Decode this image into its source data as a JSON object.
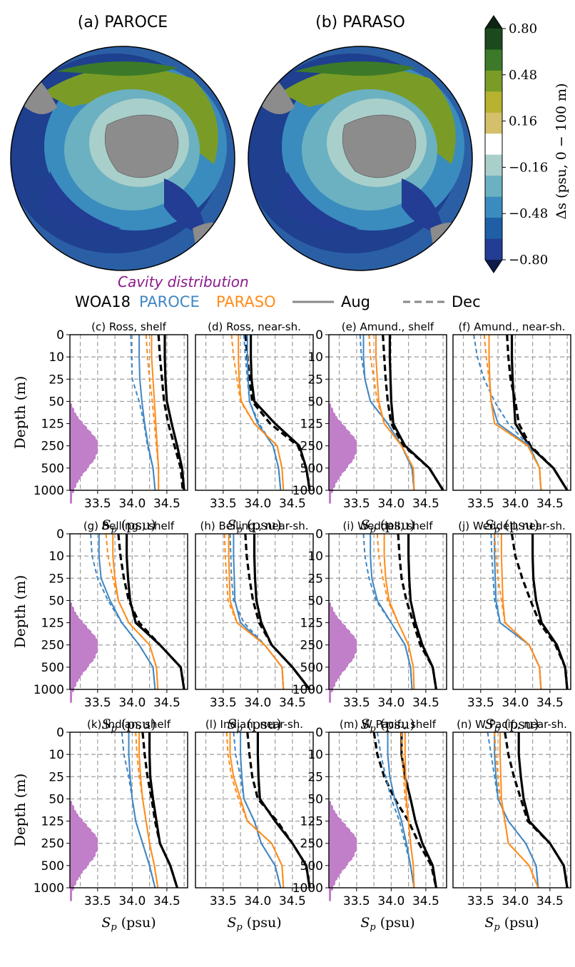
{
  "maps": {
    "panels": [
      {
        "title": "(a) PAROCE"
      },
      {
        "title": "(b) PARASO"
      }
    ],
    "colorbar": {
      "label": "Δs (psu, 0 − 100 m)",
      "ticks": [
        "0.80",
        "0.48",
        "0.16",
        "−0.16",
        "−0.48",
        "−0.80"
      ],
      "levels": [
        "#0e2413",
        "#1c4a1e",
        "#3c7a2a",
        "#7a9c26",
        "#b7b230",
        "#d4bf6a",
        "#ffffff",
        "#a9cfcb",
        "#6bb1c2",
        "#3a8cbe",
        "#1f5fa6",
        "#223d93",
        "#0d1a4b"
      ]
    }
  },
  "legend": {
    "cavity": "Cavity distribution",
    "datasets": [
      {
        "label": "WOA18",
        "color": "#000000"
      },
      {
        "label": "PAROCE",
        "color": "#3f86c2"
      },
      {
        "label": "PARASO",
        "color": "#ff8c1a"
      }
    ],
    "styles": [
      {
        "label": "Aug",
        "dash": "solid"
      },
      {
        "label": "Dec",
        "dash": "dashed"
      }
    ]
  },
  "axes": {
    "ylabel": "Depth (m)",
    "xlabel_sym": "S",
    "xlabel_sub": "p",
    "xlabel_unit": " (psu)",
    "yticks": [
      "0",
      "10",
      "25",
      "50",
      "125",
      "250",
      "500",
      "1000"
    ],
    "xticks": [
      "33.5",
      "34.0",
      "34.5"
    ]
  },
  "chart_data": {
    "type": "line",
    "x_unit": "psu",
    "y_unit": "m",
    "xlim": [
      33.1,
      34.8
    ],
    "depth_levels": [
      0,
      10,
      25,
      50,
      125,
      250,
      500,
      1000
    ],
    "cavity_color": "#c27fc9",
    "panels": [
      {
        "title": "(c) Ross, shelf",
        "cavity": true,
        "woa_aug": [
          34.47,
          34.47,
          34.48,
          34.5,
          34.57,
          34.65,
          34.72,
          34.75
        ],
        "woa_dec": [
          34.38,
          34.4,
          34.43,
          34.46,
          34.52,
          34.61,
          34.7,
          34.73
        ],
        "paroce_aug": [
          34.1,
          34.1,
          34.11,
          34.14,
          34.18,
          34.23,
          34.3,
          34.33
        ],
        "paroce_dec": [
          33.98,
          33.99,
          34.0,
          34.1,
          34.17,
          34.22,
          34.3,
          34.33
        ],
        "paraso_aug": [
          34.28,
          34.28,
          34.3,
          34.32,
          34.34,
          34.36,
          34.38,
          34.38
        ],
        "paraso_dec": [
          34.2,
          34.22,
          34.25,
          34.29,
          34.32,
          34.35,
          34.38,
          34.38
        ]
      },
      {
        "title": "(d) Ross, near-sh.",
        "cavity": false,
        "woa_aug": [
          33.9,
          33.9,
          33.91,
          33.95,
          34.25,
          34.6,
          34.7,
          34.75
        ],
        "woa_dec": [
          33.82,
          33.85,
          33.88,
          33.92,
          34.18,
          34.58,
          34.7,
          34.75
        ],
        "paroce_aug": [
          33.85,
          33.85,
          33.86,
          33.88,
          34.0,
          34.22,
          34.3,
          34.33
        ],
        "paroce_dec": [
          33.8,
          33.82,
          33.85,
          33.88,
          34.02,
          34.22,
          34.3,
          34.33
        ],
        "paraso_aug": [
          33.72,
          33.72,
          33.73,
          33.76,
          33.95,
          34.28,
          34.35,
          34.37
        ],
        "paraso_dec": [
          33.62,
          33.65,
          33.7,
          33.75,
          33.95,
          34.28,
          34.35,
          34.37
        ]
      },
      {
        "title": "(e) Amund., shelf",
        "cavity": true,
        "woa_aug": [
          33.98,
          33.98,
          33.99,
          34.0,
          34.03,
          34.2,
          34.55,
          34.75
        ],
        "woa_dec": [
          33.88,
          33.9,
          33.92,
          33.95,
          34.0,
          34.18,
          34.55,
          34.75
        ],
        "paroce_aug": [
          33.6,
          33.6,
          33.62,
          33.7,
          33.95,
          34.15,
          34.3,
          34.33
        ],
        "paroce_dec": [
          33.55,
          33.57,
          33.62,
          33.7,
          33.95,
          34.15,
          34.3,
          34.33
        ],
        "paraso_aug": [
          33.78,
          33.78,
          33.8,
          33.82,
          33.9,
          34.15,
          34.32,
          34.33
        ],
        "paraso_dec": [
          33.68,
          33.7,
          33.75,
          33.8,
          33.9,
          34.15,
          34.32,
          34.33
        ]
      },
      {
        "title": "(f) Amund., near-sh.",
        "cavity": false,
        "woa_aug": [
          33.95,
          33.95,
          33.96,
          33.98,
          34.0,
          34.2,
          34.55,
          34.75
        ],
        "woa_dec": [
          33.88,
          33.9,
          33.93,
          34.0,
          34.05,
          34.22,
          34.55,
          34.75
        ],
        "paroce_aug": [
          33.62,
          33.62,
          33.63,
          33.65,
          33.75,
          34.2,
          34.35,
          34.37
        ],
        "paroce_dec": [
          33.4,
          33.45,
          33.55,
          33.7,
          33.9,
          34.2,
          34.35,
          34.37
        ],
        "paraso_aug": [
          33.62,
          33.62,
          33.63,
          33.65,
          33.7,
          34.18,
          34.35,
          34.37
        ],
        "paraso_dec": [
          33.55,
          33.58,
          33.62,
          33.65,
          33.7,
          34.18,
          34.35,
          34.37
        ]
      },
      {
        "title": "(g) Belling., shelf",
        "cavity": true,
        "woa_aug": [
          33.92,
          33.92,
          33.94,
          33.97,
          34.05,
          34.4,
          34.7,
          34.75
        ],
        "woa_dec": [
          33.8,
          33.83,
          33.88,
          33.95,
          34.1,
          34.4,
          34.7,
          34.75
        ],
        "paroce_aug": [
          33.52,
          33.52,
          33.55,
          33.68,
          33.85,
          34.1,
          34.3,
          34.33
        ],
        "paroce_dec": [
          33.4,
          33.42,
          33.5,
          33.65,
          33.85,
          34.1,
          34.3,
          34.33
        ],
        "paraso_aug": [
          33.72,
          33.72,
          33.75,
          33.8,
          33.95,
          34.25,
          34.35,
          34.37
        ],
        "paraso_dec": [
          33.62,
          33.65,
          33.72,
          33.8,
          33.95,
          34.25,
          34.35,
          34.37
        ]
      },
      {
        "title": "(h) Belling., near-sh.",
        "cavity": false,
        "woa_aug": [
          33.95,
          33.95,
          33.96,
          33.98,
          34.05,
          34.2,
          34.5,
          34.75
        ],
        "woa_dec": [
          33.82,
          33.84,
          33.88,
          33.93,
          34.02,
          34.2,
          34.5,
          34.75
        ],
        "paroce_aug": [
          33.65,
          33.65,
          33.66,
          33.67,
          33.75,
          34.1,
          34.35,
          34.37
        ],
        "paroce_dec": [
          33.6,
          33.61,
          33.62,
          33.65,
          33.8,
          34.1,
          34.35,
          34.37
        ],
        "paraso_aug": [
          33.58,
          33.58,
          33.59,
          33.6,
          33.7,
          34.1,
          34.35,
          34.37
        ],
        "paraso_dec": [
          33.52,
          33.53,
          33.55,
          33.57,
          33.7,
          34.1,
          34.35,
          34.37
        ]
      },
      {
        "title": "(i) Weddell, shelf",
        "cavity": true,
        "woa_aug": [
          34.25,
          34.25,
          34.26,
          34.28,
          34.35,
          34.45,
          34.6,
          34.65
        ],
        "woa_dec": [
          34.1,
          34.12,
          34.15,
          34.22,
          34.32,
          34.42,
          34.6,
          34.65
        ],
        "paroce_aug": [
          33.7,
          33.7,
          33.72,
          33.8,
          34.0,
          34.2,
          34.28,
          34.3
        ],
        "paroce_dec": [
          33.6,
          33.62,
          33.68,
          33.78,
          34.0,
          34.2,
          34.28,
          34.3
        ],
        "paraso_aug": [
          33.9,
          33.9,
          33.92,
          33.97,
          34.1,
          34.25,
          34.32,
          34.33
        ],
        "paraso_dec": [
          33.8,
          33.82,
          33.88,
          33.95,
          34.1,
          34.25,
          34.32,
          34.33
        ]
      },
      {
        "title": "(j) Weddell, near-sh.",
        "cavity": false,
        "woa_aug": [
          34.25,
          34.25,
          34.26,
          34.3,
          34.38,
          34.6,
          34.72,
          34.75
        ],
        "woa_dec": [
          33.95,
          34.0,
          34.1,
          34.22,
          34.35,
          34.58,
          34.72,
          34.75
        ],
        "paroce_aug": [
          33.7,
          33.7,
          33.71,
          33.72,
          33.78,
          34.2,
          34.35,
          34.37
        ],
        "paroce_dec": [
          33.65,
          33.66,
          33.68,
          33.7,
          33.78,
          34.2,
          34.35,
          34.37
        ],
        "paraso_aug": [
          33.8,
          33.8,
          33.81,
          33.82,
          33.85,
          34.2,
          34.35,
          34.37
        ],
        "paraso_dec": [
          33.7,
          33.72,
          33.75,
          33.8,
          33.85,
          34.2,
          34.35,
          34.37
        ]
      },
      {
        "title": "(k) Indian, shelf",
        "cavity": true,
        "woa_aug": [
          34.25,
          34.25,
          34.26,
          34.3,
          34.35,
          34.4,
          34.55,
          34.65
        ],
        "woa_dec": [
          34.15,
          34.18,
          34.22,
          34.28,
          34.33,
          34.4,
          34.55,
          34.65
        ],
        "paroce_aug": [
          33.95,
          33.95,
          33.97,
          34.0,
          34.05,
          34.15,
          34.25,
          34.33
        ],
        "paroce_dec": [
          33.85,
          33.88,
          33.95,
          34.0,
          34.05,
          34.15,
          34.25,
          34.33
        ],
        "paraso_aug": [
          34.1,
          34.1,
          34.12,
          34.15,
          34.2,
          34.25,
          34.32,
          34.37
        ],
        "paraso_dec": [
          34.05,
          34.07,
          34.1,
          34.15,
          34.2,
          34.25,
          34.32,
          34.37
        ]
      },
      {
        "title": "(l) Indian, near-sh.",
        "cavity": false,
        "woa_aug": [
          34.0,
          34.0,
          34.01,
          34.03,
          34.25,
          34.5,
          34.7,
          34.75
        ],
        "woa_dec": [
          33.85,
          33.88,
          33.92,
          34.0,
          34.28,
          34.5,
          34.7,
          34.75
        ],
        "paroce_aug": [
          33.75,
          33.75,
          33.77,
          33.8,
          33.95,
          34.05,
          34.25,
          34.33
        ],
        "paroce_dec": [
          33.65,
          33.68,
          33.75,
          33.8,
          33.95,
          34.05,
          34.25,
          34.33
        ],
        "paraso_aug": [
          33.6,
          33.6,
          33.65,
          33.75,
          33.85,
          34.2,
          34.35,
          34.37
        ],
        "paraso_dec": [
          33.55,
          33.57,
          33.62,
          33.72,
          33.85,
          34.2,
          34.35,
          34.37
        ]
      },
      {
        "title": "(m) W Pacif., shelf",
        "cavity": true,
        "woa_aug": [
          34.15,
          34.15,
          34.2,
          34.28,
          34.35,
          34.45,
          34.6,
          34.65
        ],
        "woa_dec": [
          33.75,
          33.8,
          33.9,
          34.05,
          34.25,
          34.4,
          34.58,
          34.65
        ],
        "paroce_aug": [
          33.95,
          33.95,
          33.98,
          34.05,
          34.15,
          34.22,
          34.28,
          34.33
        ],
        "paroce_dec": [
          33.8,
          33.85,
          33.92,
          34.0,
          34.12,
          34.2,
          34.28,
          34.33
        ],
        "paraso_aug": [
          34.2,
          34.2,
          34.21,
          34.22,
          34.25,
          34.28,
          34.32,
          34.33
        ],
        "paraso_dec": [
          34.15,
          34.16,
          34.18,
          34.2,
          34.25,
          34.28,
          34.32,
          34.33
        ]
      },
      {
        "title": "(n) W Pacif., near-sh.",
        "cavity": false,
        "woa_aug": [
          34.05,
          34.05,
          34.08,
          34.12,
          34.2,
          34.5,
          34.7,
          34.75
        ],
        "woa_dec": [
          33.85,
          33.9,
          33.98,
          34.08,
          34.18,
          34.5,
          34.7,
          34.75
        ],
        "paroce_aug": [
          33.7,
          33.7,
          33.72,
          33.75,
          33.9,
          34.15,
          34.3,
          34.33
        ],
        "paroce_dec": [
          33.6,
          33.65,
          33.7,
          33.75,
          33.9,
          34.15,
          34.3,
          34.33
        ],
        "paraso_aug": [
          33.78,
          33.78,
          33.79,
          33.8,
          33.85,
          33.9,
          34.2,
          34.33
        ],
        "paraso_dec": [
          33.7,
          33.72,
          33.75,
          33.78,
          33.85,
          33.9,
          34.2,
          34.33
        ]
      }
    ]
  }
}
